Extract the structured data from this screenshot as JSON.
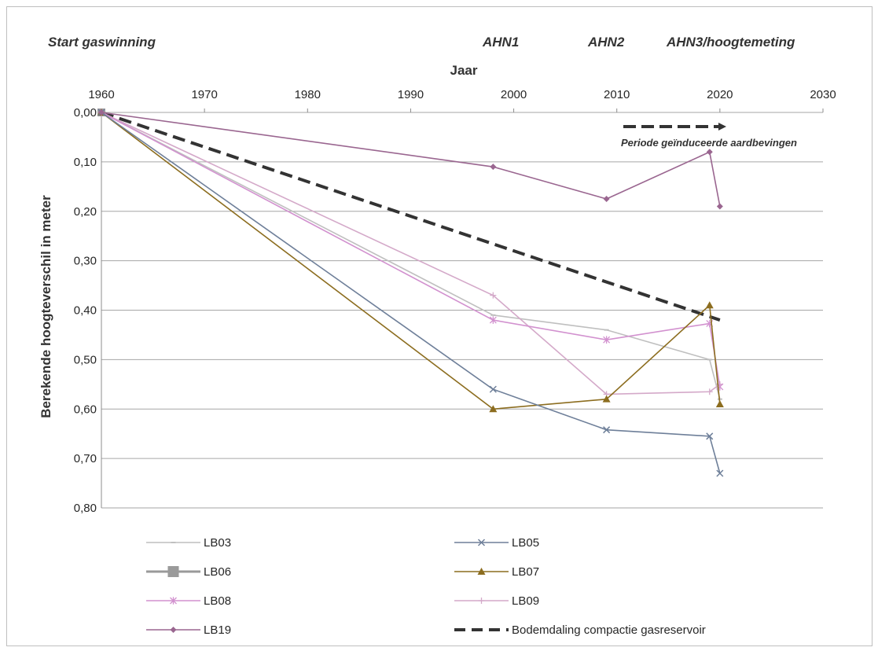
{
  "chart_data": {
    "type": "line",
    "xlabel": "Jaar",
    "ylabel": "Berekende hoogteverschil in meter",
    "xlim": [
      1960,
      2030
    ],
    "ylim": [
      0.0,
      0.8
    ],
    "y_inverted": true,
    "grid": true,
    "x_axis_position": "top",
    "legend_position": "bottom",
    "x_ticks": [
      "1960",
      "1970",
      "1980",
      "1990",
      "2000",
      "2010",
      "2020",
      "2030"
    ],
    "y_ticks": [
      "0,00",
      "0,10",
      "0,20",
      "0,30",
      "0,40",
      "0,50",
      "0,60",
      "0,70",
      "0,80"
    ],
    "annotations": {
      "start": "Start gaswinning",
      "ahn1": "AHN1",
      "ahn2": "AHN2",
      "ahn3": "AHN3/hoogtemeting",
      "period": "Periode geïnduceerde aardbevingen"
    },
    "series": [
      {
        "name": "LB03",
        "color": "#bfbfbf",
        "marker": "dash",
        "x": [
          1960,
          1998,
          2009,
          2019,
          2020
        ],
        "values": [
          0.0,
          0.41,
          0.44,
          0.5,
          0.58
        ]
      },
      {
        "name": "LB05",
        "color": "#6e7f99",
        "marker": "x",
        "x": [
          1960,
          1998,
          2009,
          2019,
          2020
        ],
        "values": [
          0.0,
          0.56,
          0.642,
          0.655,
          0.73
        ]
      },
      {
        "name": "LB06",
        "color": "#9a9a9a",
        "marker": "square",
        "x": [
          1960
        ],
        "values": [
          0.0
        ]
      },
      {
        "name": "LB07",
        "color": "#8c6d1f",
        "marker": "triangle",
        "x": [
          1960,
          1998,
          2009,
          2019,
          2020
        ],
        "values": [
          0.0,
          0.6,
          0.58,
          0.39,
          0.59
        ]
      },
      {
        "name": "LB08",
        "color": "#d291cf",
        "marker": "star",
        "x": [
          1960,
          1998,
          2009,
          2019,
          2020
        ],
        "values": [
          0.0,
          0.42,
          0.46,
          0.427,
          0.555
        ]
      },
      {
        "name": "LB09",
        "color": "#d4a9c9",
        "marker": "plus",
        "x": [
          1960,
          1998,
          2009,
          2019,
          2020
        ],
        "values": [
          0.0,
          0.37,
          0.57,
          0.565,
          0.55
        ]
      },
      {
        "name": "LB19",
        "color": "#9a6690",
        "marker": "diamond",
        "x": [
          1960,
          1998,
          2009,
          2019,
          2020
        ],
        "values": [
          0.0,
          0.11,
          0.175,
          0.08,
          0.19
        ]
      },
      {
        "name": "Bodemdaling compactie gasreservoir",
        "color": "#333333",
        "marker": "none",
        "dashed": true,
        "x": [
          1960,
          2020
        ],
        "values": [
          0.0,
          0.42
        ]
      }
    ]
  }
}
